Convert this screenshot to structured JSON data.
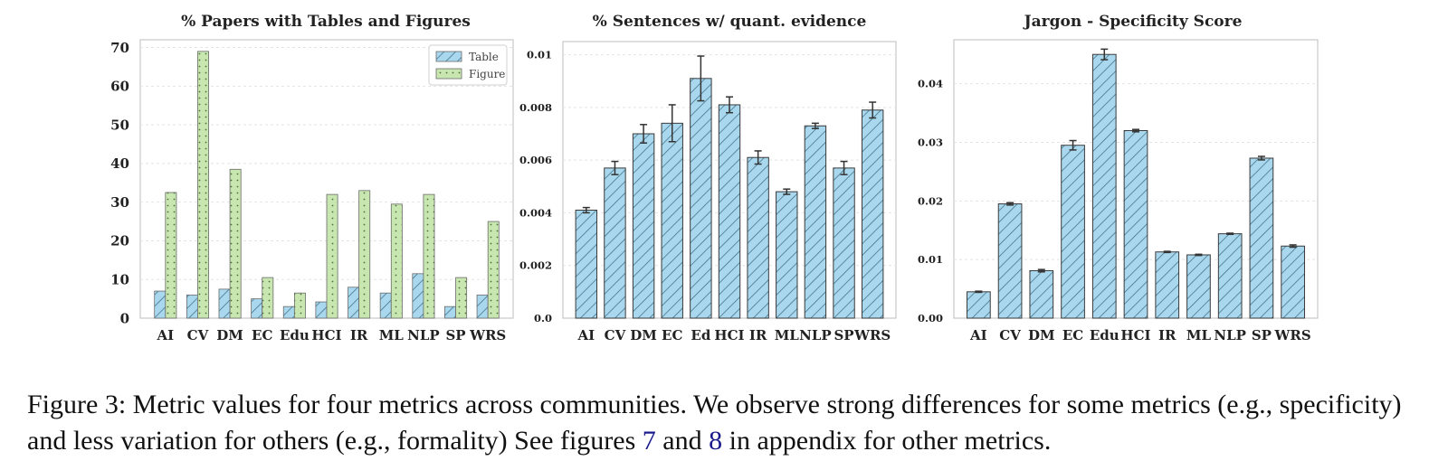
{
  "chart_data": [
    {
      "type": "bar",
      "title": "% Papers with Tables and Figures",
      "categories": [
        "AI",
        "CV",
        "DM",
        "EC",
        "Edu",
        "HCI",
        "IR",
        "ML",
        "NLP",
        "SP",
        "WRS"
      ],
      "series": [
        {
          "name": "Table",
          "values": [
            7,
            6,
            7.5,
            5,
            3,
            4.2,
            8,
            6.5,
            11.5,
            3,
            6
          ]
        },
        {
          "name": "Figure",
          "values": [
            32.5,
            69,
            38.5,
            10.5,
            6.5,
            32,
            33,
            29.5,
            32,
            10.5,
            25
          ]
        }
      ],
      "yticks": [
        "0",
        "10",
        "20",
        "30",
        "40",
        "50",
        "60",
        "70"
      ],
      "ylim": [
        0,
        72
      ],
      "legend": "top-right",
      "grid": true,
      "colors": {
        "Table": "#a9d8ee",
        "Figure": "#c7e6b0"
      }
    },
    {
      "type": "bar",
      "title": "% Sentences w/ quant. evidence",
      "categories": [
        "AI",
        "CV",
        "DM",
        "EC",
        "Ed",
        "HCI",
        "IR",
        "ML",
        "NLP",
        "SP",
        "WRS"
      ],
      "values": [
        0.0041,
        0.0057,
        0.007,
        0.0074,
        0.0091,
        0.0081,
        0.0061,
        0.0048,
        0.0073,
        0.0057,
        0.0079
      ],
      "errors": [
        0.0001,
        0.00025,
        0.00035,
        0.0007,
        0.00085,
        0.0003,
        0.00025,
        0.0001,
        0.0001,
        0.00025,
        0.0003
      ],
      "yticks": [
        "0.0",
        "0.002",
        "0.004",
        "0.006",
        "0.008",
        "0.01"
      ],
      "ylim": [
        0,
        0.0105
      ],
      "grid": true,
      "colors": {
        "bar": "#a9d8ee"
      }
    },
    {
      "type": "bar",
      "title": "Jargon - Specificity Score",
      "categories": [
        "AI",
        "CV",
        "DM",
        "EC",
        "Edu",
        "HCI",
        "IR",
        "ML",
        "NLP",
        "SP",
        "WRS"
      ],
      "values": [
        0.0045,
        0.0195,
        0.0081,
        0.0295,
        0.045,
        0.032,
        0.0113,
        0.0108,
        0.0144,
        0.0273,
        0.0123
      ],
      "errors": [
        0.0001,
        0.0002,
        0.0002,
        0.0008,
        0.0009,
        0.0002,
        0.0001,
        0.0001,
        0.0001,
        0.0003,
        0.0002
      ],
      "yticks": [
        "0.00",
        "0.01",
        "0.02",
        "0.03",
        "0.04"
      ],
      "ylim": [
        0,
        0.0475
      ],
      "grid": true,
      "colors": {
        "bar": "#a9d8ee"
      }
    }
  ],
  "caption": {
    "part1": "Figure 3: Metric values for four metrics across communities. We observe strong differences for some metrics (e.g., specificity) and less variation for others (e.g., formality) See figures ",
    "ref1": "7",
    "part2": " and ",
    "ref2": "8",
    "part3": " in appendix for other metrics."
  }
}
